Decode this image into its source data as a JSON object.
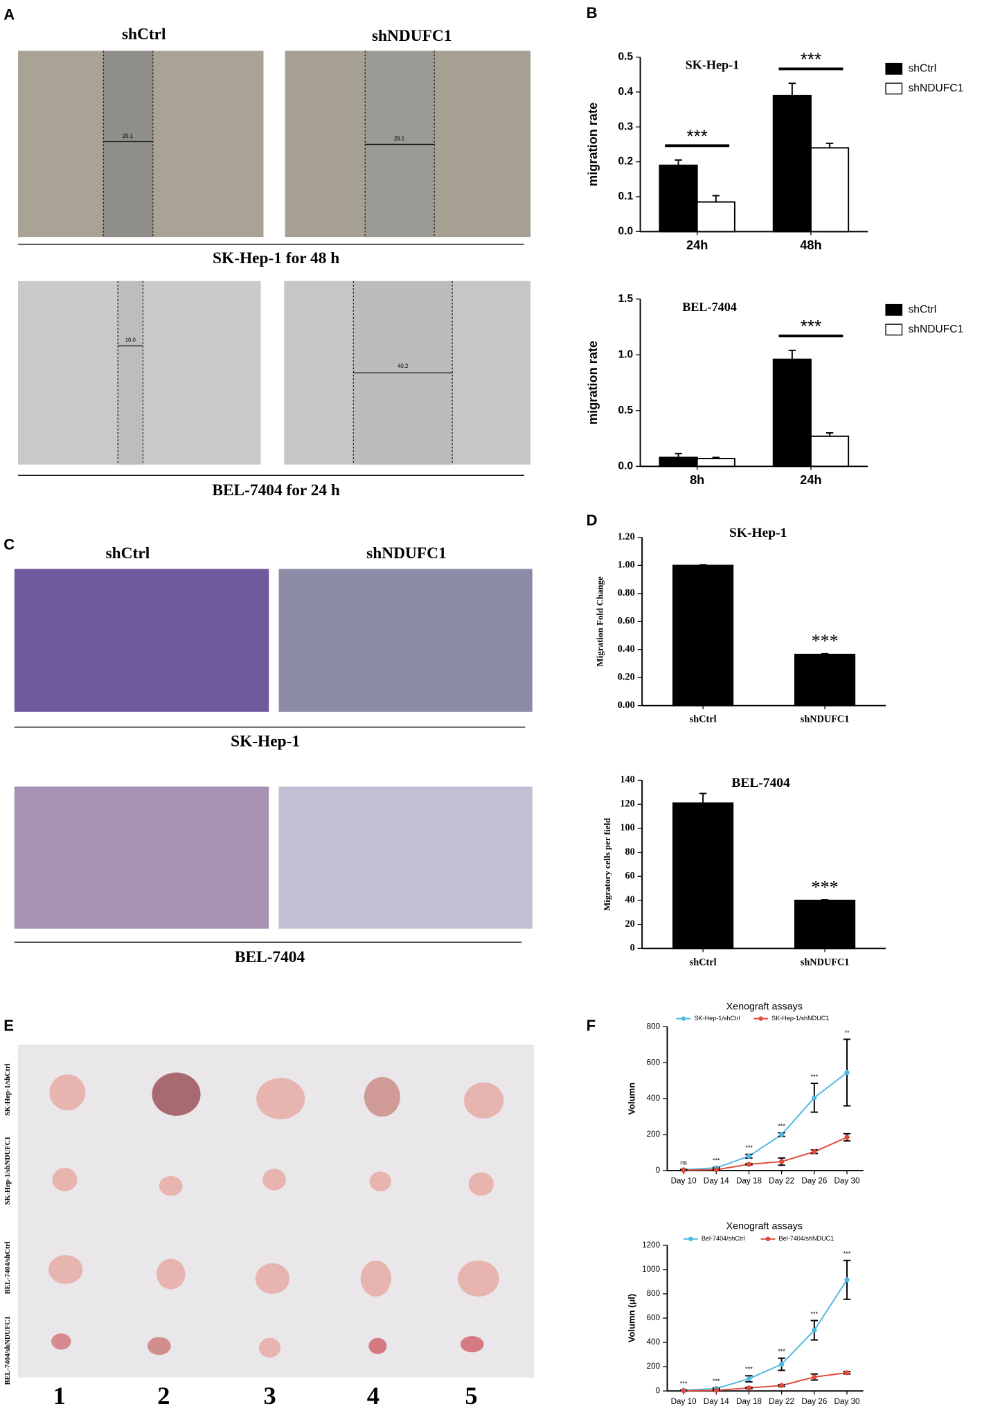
{
  "panels": {
    "A": {
      "label": "A",
      "headers": [
        "shCtrl",
        "shNDUFC1"
      ],
      "captions": [
        "SK-Hep-1 for 48 h",
        "BEL-7404 for 24 h"
      ],
      "scratch_widths": [
        "20.1",
        "28.1",
        "10.0",
        "40.2"
      ]
    },
    "B": {
      "label": "B"
    },
    "C": {
      "label": "C",
      "headers": [
        "shCtrl",
        "shNDUFC1"
      ],
      "captions": [
        "SK-Hep-1",
        "BEL-7404"
      ]
    },
    "D": {
      "label": "D"
    },
    "E": {
      "label": "E",
      "row_labels": [
        "SK-Hep-1/shCtrl",
        "SK-Hep-1/shNDUFC1",
        "BEL-7404/shCtrl",
        "BEL-7404/shNDUFC1"
      ],
      "column_labels": [
        "1",
        "2",
        "3",
        "4",
        "5"
      ]
    },
    "F": {
      "label": "F"
    }
  },
  "chart_data": [
    {
      "type": "bar",
      "title": "SK-Hep-1",
      "y_label": "migration rate",
      "categories": [
        "24h",
        "48h"
      ],
      "series": [
        {
          "name": "shCtrl",
          "color": "#000000",
          "values": [
            0.19,
            0.39
          ],
          "errors": [
            0.015,
            0.035
          ]
        },
        {
          "name": "shNDUFC1",
          "color": "#ffffff",
          "values": [
            0.085,
            0.24
          ],
          "errors": [
            0.018,
            0.013
          ]
        }
      ],
      "annotations": [
        "***",
        "***"
      ],
      "significance_bar": true,
      "legend": "right",
      "ylim": [
        0,
        0.5
      ],
      "yticks": [
        {
          "value": 0,
          "label": "0.0"
        },
        0.1,
        0.2,
        0.3,
        0.4,
        0.5
      ]
    },
    {
      "type": "bar",
      "title": "BEL-7404",
      "y_label": "migration rate",
      "categories": [
        "8h",
        "24h"
      ],
      "series": [
        {
          "name": "shCtrl",
          "color": "#000000",
          "values": [
            0.08,
            0.96
          ],
          "errors": [
            0.035,
            0.08
          ]
        },
        {
          "name": "shNDUFC1",
          "color": "#ffffff",
          "values": [
            0.07,
            0.27
          ],
          "errors": [
            0.01,
            0.03
          ]
        }
      ],
      "annotations": [
        null,
        "***"
      ],
      "significance_bar": true,
      "legend": "right",
      "ylim": [
        0,
        1.5
      ],
      "yticks": [
        {
          "value": 0,
          "label": "0.0"
        },
        0.5,
        {
          "value": 1,
          "label": "1.0"
        },
        1.5
      ]
    },
    {
      "type": "bar",
      "title": "SK-Hep-1",
      "y_label": "Migration Fold Change",
      "categories": [
        "shCtrl",
        "shNDUFC1"
      ],
      "values": [
        1.0,
        0.365
      ],
      "errors": [
        0.005,
        0.005
      ],
      "color": "#000000",
      "annotations": [
        null,
        "***"
      ],
      "ylim": [
        0,
        1.2
      ],
      "yticks": [
        {
          "value": 0,
          "label": "0.00"
        },
        {
          "value": 0.2,
          "label": "0.20"
        },
        {
          "value": 0.4,
          "label": "0.40"
        },
        {
          "value": 0.6,
          "label": "0.60"
        },
        {
          "value": 0.8,
          "label": "0.80"
        },
        {
          "value": 1,
          "label": "1.00"
        },
        {
          "value": 1.2,
          "label": "1.20"
        }
      ]
    },
    {
      "type": "bar",
      "title": "BEL-7404",
      "y_label": "Migratory cells per field",
      "categories": [
        "shCtrl",
        "shNDUFC1"
      ],
      "values": [
        121,
        40
      ],
      "errors": [
        8,
        0.5
      ],
      "color": "#000000",
      "annotations": [
        null,
        "***"
      ],
      "ylim": [
        0,
        140
      ],
      "yticks": [
        0,
        20,
        40,
        60,
        80,
        100,
        120,
        140
      ]
    },
    {
      "type": "line",
      "title": "Xenograft assays",
      "y_label": "Volumn",
      "categories": [
        "Day 10",
        "Day 14",
        "Day 18",
        "Day 22",
        "Day 26",
        "Day 30"
      ],
      "series": [
        {
          "name": "SK-Hep-1/shCtrl",
          "color": "#4fb8e0",
          "values": [
            5,
            15,
            80,
            200,
            405,
            545
          ],
          "errors": [
            2,
            3,
            10,
            10,
            80,
            185
          ]
        },
        {
          "name": "SK-Hep-1/shNDUC1",
          "color": "#e04a3a",
          "values": [
            2,
            5,
            35,
            50,
            105,
            185
          ],
          "errors": [
            1,
            2,
            3,
            20,
            10,
            20
          ]
        }
      ],
      "annotations": [
        "ns",
        "***",
        "***",
        "***",
        "***",
        "**"
      ],
      "legend": "top",
      "ylim": [
        0,
        800
      ],
      "yticks": [
        0,
        200,
        400,
        600,
        800
      ]
    },
    {
      "type": "line",
      "title": "Xenograft assays",
      "y_label": "Volumn (μl)",
      "categories": [
        "Day 10",
        "Day 14",
        "Day 18",
        "Day 22",
        "Day 26",
        "Day 30"
      ],
      "series": [
        {
          "name": "Bel-7404/shCtrl",
          "color": "#4fb8e0",
          "values": [
            5,
            20,
            100,
            220,
            500,
            915
          ],
          "errors": [
            2,
            5,
            25,
            50,
            80,
            160
          ]
        },
        {
          "name": "Bel-7404/shNDUC1",
          "color": "#e04a3a",
          "values": [
            2,
            5,
            25,
            45,
            115,
            150
          ],
          "errors": [
            1,
            2,
            5,
            8,
            25,
            10
          ]
        }
      ],
      "annotations": [
        "***",
        "***",
        "***",
        "***",
        "***",
        "***"
      ],
      "legend": "top",
      "ylim": [
        0,
        1200
      ],
      "yticks": [
        0,
        200,
        400,
        600,
        800,
        1000,
        1200
      ]
    }
  ]
}
